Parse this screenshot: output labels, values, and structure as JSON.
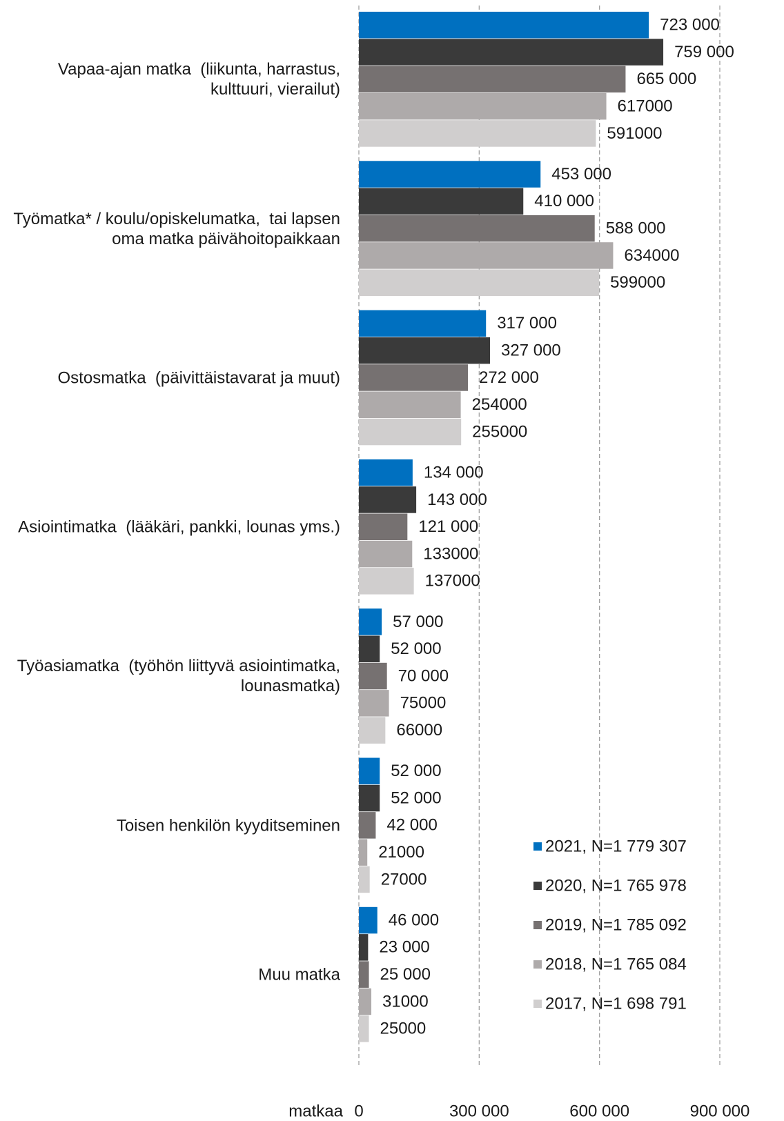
{
  "chart_data": {
    "type": "barh",
    "x_label": "matkaa",
    "categories": [
      "Vapaa-ajan matka  (liikunta, harrastus, kulttuuri, vierailut)",
      "Työmatka* / koulu/opiskelumatka,  tai lapsen oma matka päivähoitopaikkaan",
      "Ostosmatka  (päivittäistavarat ja muut)",
      "Asiointimatka  (lääkäri, pankki, lounas yms.)",
      "Työasiamatka  (työhön liittyvä asiointimatka, lounasmatka)",
      "Toisen henkilön kyyditseminen",
      "Muu matka"
    ],
    "series": [
      {
        "name": "2021, N=1 779 307",
        "color": "#0070c0",
        "values": [
          723000,
          453000,
          317000,
          134000,
          57000,
          52000,
          46000
        ],
        "value_labels": [
          "723 000",
          "453 000",
          "317 000",
          "134 000",
          "57 000",
          "52 000",
          "46 000"
        ]
      },
      {
        "name": "2020, N=1 765 978",
        "color": "#3a3a3a",
        "values": [
          759000,
          410000,
          327000,
          143000,
          52000,
          52000,
          23000
        ],
        "value_labels": [
          "759 000",
          "410 000",
          "327 000",
          "143 000",
          "52 000",
          "52 000",
          "23 000"
        ]
      },
      {
        "name": "2019, N=1 785 092",
        "color": "#767171",
        "values": [
          665000,
          588000,
          272000,
          121000,
          70000,
          42000,
          25000
        ],
        "value_labels": [
          "665 000",
          "588 000",
          "272 000",
          "121 000",
          "70 000",
          "42 000",
          "25 000"
        ]
      },
      {
        "name": "2018, N=1 765 084",
        "color": "#aeaaaa",
        "values": [
          617000,
          634000,
          254000,
          133000,
          75000,
          21000,
          31000
        ],
        "value_labels": [
          "617000",
          "634000",
          "254000",
          "133000",
          "75000",
          "21000",
          "31000"
        ]
      },
      {
        "name": "2017, N=1 698 791",
        "color": "#d0cece",
        "values": [
          591000,
          599000,
          255000,
          137000,
          66000,
          27000,
          25000
        ],
        "value_labels": [
          "591000",
          "599000",
          "255000",
          "137000",
          "66000",
          "27000",
          "25000"
        ]
      }
    ],
    "xlim": [
      0,
      900000
    ],
    "xticks": [
      0,
      {
        "value": 300000,
        "label": "300 000"
      },
      {
        "value": 600000,
        "label": "600 000"
      },
      {
        "value": 900000,
        "label": "900 000"
      }
    ],
    "grid": true,
    "legend": "lower right"
  }
}
